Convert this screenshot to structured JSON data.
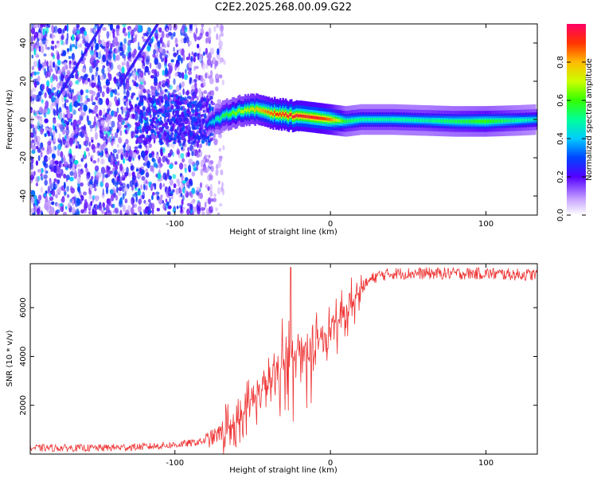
{
  "figure": {
    "title": "C2E2.2025.268.00.09.G22"
  },
  "chart_data": [
    {
      "type": "heatmap",
      "xlabel": "Height of straight line (km)",
      "ylabel": "Frequency (Hz)",
      "xlim": [
        -193,
        133
      ],
      "ylim": [
        -50,
        50
      ],
      "xticks": [
        -100,
        0,
        100
      ],
      "xtick_labels": [
        "-100",
        "0",
        "100"
      ],
      "yticks": [
        -40,
        -20,
        0,
        20,
        40
      ],
      "ytick_labels": [
        "-40",
        "-20",
        "0",
        "20",
        "40"
      ],
      "colorbar": {
        "label": "Normalized spectral amplitude",
        "range": [
          0,
          1
        ],
        "ticks": [
          0.0,
          0.2,
          0.4,
          0.6,
          0.8
        ],
        "tick_labels": [
          "0.0",
          "0.2",
          "0.4",
          "0.6",
          "0.8"
        ]
      },
      "ridge": {
        "description_points_x": [
          -80,
          -75,
          -70,
          -65,
          -60,
          -55,
          -50,
          -45,
          -40,
          -35,
          -30,
          -25,
          -20,
          -15,
          -10,
          -5,
          0,
          5,
          10,
          20,
          40,
          60,
          80,
          100,
          120,
          133
        ],
        "description_points_freq": [
          -3,
          -1,
          1,
          3,
          4,
          5,
          5,
          5,
          4,
          3,
          2.5,
          2,
          2,
          1.5,
          1,
          0.5,
          0,
          -0.5,
          -1,
          0,
          0,
          -0.5,
          -1,
          -1,
          -0.5,
          0
        ],
        "peak_amplitude": [
          0.3,
          0.45,
          0.55,
          0.6,
          0.65,
          0.7,
          0.75,
          0.8,
          0.85,
          0.9,
          0.92,
          0.95,
          0.95,
          0.93,
          0.95,
          0.9,
          0.85,
          0.7,
          0.55,
          0.5,
          0.5,
          0.5,
          0.55,
          0.6,
          0.5,
          0.45
        ]
      }
    },
    {
      "type": "line",
      "xlabel": "Height of straight line (km)",
      "ylabel": "SNR (10 * v/v)",
      "xlim": [
        -193,
        133
      ],
      "ylim": [
        0,
        7800
      ],
      "xticks": [
        -100,
        0,
        100
      ],
      "xtick_labels": [
        "-100",
        "0",
        "100"
      ],
      "yticks": [
        2000,
        4000,
        6000
      ],
      "ytick_labels": [
        "2000",
        "4000",
        "6000"
      ],
      "series": [
        {
          "name": "SNR",
          "color": "#ee3333",
          "x": [
            -193,
            -150,
            -120,
            -100,
            -90,
            -80,
            -75,
            -70,
            -65,
            -60,
            -55,
            -50,
            -45,
            -40,
            -35,
            -30,
            -25,
            -20,
            -15,
            -10,
            -5,
            0,
            5,
            10,
            15,
            20,
            25,
            30,
            40,
            60,
            80,
            100,
            120,
            133
          ],
          "y": [
            250,
            250,
            300,
            380,
            450,
            550,
            700,
            900,
            1100,
            1400,
            1800,
            2200,
            2600,
            2900,
            3200,
            3500,
            3800,
            4000,
            4300,
            4600,
            4900,
            5100,
            5400,
            5800,
            6300,
            6800,
            7100,
            7300,
            7400,
            7400,
            7400,
            7400,
            7350,
            7350
          ]
        }
      ]
    }
  ]
}
